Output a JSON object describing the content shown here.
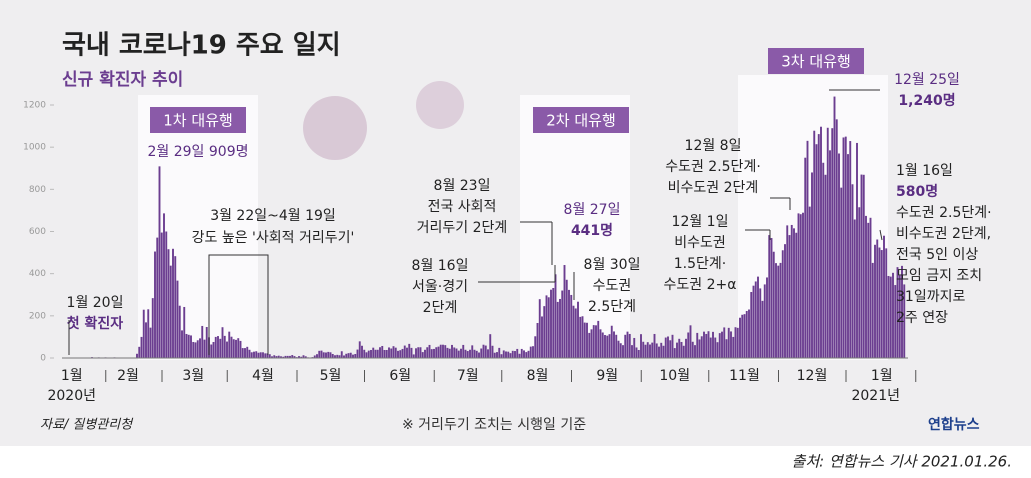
{
  "chart_data": {
    "type": "bar",
    "title": "국내 코로나19 주요 일지",
    "subtitle": "신규 확진자 추이",
    "color": "#6b3d90",
    "ylim": [
      0,
      1200
    ],
    "yticks": [
      0,
      200,
      400,
      600,
      800,
      1000,
      1200
    ],
    "year_start": "2020년",
    "year_end": "2021년",
    "waves": [
      "1차 대유행",
      "2차 대유행",
      "3차 대유행"
    ],
    "categories": [
      null,
      "1월",
      null,
      null,
      null,
      null,
      null,
      null,
      null,
      null,
      null,
      null,
      null,
      null,
      null,
      null,
      null,
      null,
      null,
      null,
      null,
      null,
      null,
      null,
      null,
      null,
      "2월",
      null,
      null,
      null,
      null,
      null,
      null,
      null,
      null,
      null,
      null,
      null,
      null,
      null,
      null,
      null,
      null,
      null,
      null,
      null,
      null,
      null,
      null,
      null,
      null,
      null,
      null,
      null,
      null,
      "3월",
      null,
      null,
      null,
      null,
      null,
      null,
      null,
      null,
      null,
      null,
      null,
      null,
      null,
      null,
      null,
      null,
      null,
      null,
      null,
      null,
      null,
      null,
      null,
      null,
      null,
      null,
      null,
      null,
      null,
      null,
      "4월",
      null,
      null,
      null,
      null,
      null,
      null,
      null,
      null,
      null,
      null,
      null,
      null,
      null,
      null,
      null,
      null,
      null,
      null,
      null,
      null,
      null,
      null,
      null,
      null,
      null,
      null,
      null,
      null,
      null,
      "5월",
      null,
      null,
      null,
      null,
      null,
      null,
      null,
      null,
      null,
      null,
      null,
      null,
      null,
      null,
      null,
      null,
      null,
      null,
      null,
      null,
      null,
      null,
      null,
      null,
      null,
      null,
      null,
      null,
      null,
      null,
      "6월",
      null,
      null,
      null,
      null,
      null,
      null,
      null,
      null,
      null,
      null,
      null,
      null,
      null,
      null,
      null,
      null,
      null,
      null,
      null,
      null,
      null,
      null,
      null,
      null,
      null,
      null,
      null,
      null,
      null,
      "7월",
      null,
      null,
      null,
      null,
      null,
      null,
      null,
      null,
      null,
      null,
      null,
      null,
      null,
      null,
      null,
      null,
      null,
      null,
      null,
      null,
      null,
      null,
      null,
      null,
      null,
      null,
      null,
      null,
      null,
      null,
      "8월",
      null,
      null,
      null,
      null,
      null,
      null,
      null,
      null,
      null,
      null,
      null,
      null,
      null,
      null,
      null,
      null,
      null,
      null,
      null,
      null,
      null,
      null,
      null,
      null,
      null,
      null,
      null,
      null,
      null,
      null,
      "9월",
      null,
      null,
      null,
      null,
      null,
      null,
      null,
      null,
      null,
      null,
      null,
      null,
      null,
      null,
      null,
      null,
      null,
      null,
      null,
      null,
      null,
      null,
      null,
      null,
      null,
      null,
      null,
      null,
      null,
      "10월",
      null,
      null,
      null,
      null,
      null,
      null,
      null,
      null,
      null,
      null,
      null,
      null,
      null,
      null,
      null,
      null,
      null,
      null,
      null,
      null,
      null,
      null,
      null,
      null,
      null,
      null,
      null,
      null,
      null,
      null,
      "11월",
      null,
      null,
      null,
      null,
      null,
      null,
      null,
      null,
      null,
      null,
      null,
      null,
      null,
      null,
      null,
      null,
      null,
      null,
      null,
      null,
      null,
      null,
      null,
      null,
      null,
      null,
      null,
      null,
      null,
      "12월",
      null,
      null,
      null,
      null,
      null,
      null,
      null,
      null,
      null,
      null,
      null,
      null,
      null,
      null,
      null,
      null,
      null,
      null,
      null,
      null,
      null,
      null,
      null,
      null,
      null,
      null,
      null,
      null,
      null,
      null,
      "1월",
      null,
      null,
      null,
      null,
      null,
      null,
      null,
      null,
      null,
      null
    ],
    "values": [
      1,
      0,
      0,
      0,
      1,
      0,
      2,
      0,
      0,
      0,
      4,
      1,
      1,
      3,
      0,
      0,
      3,
      2,
      1,
      0,
      3,
      0,
      0,
      0,
      0,
      0,
      0,
      1,
      1,
      1,
      20,
      53,
      100,
      229,
      169,
      231,
      144,
      284,
      505,
      571,
      909,
      595,
      686,
      600,
      516,
      438,
      518,
      483,
      367,
      248,
      131,
      242,
      114,
      110,
      107,
      76,
      74,
      84,
      93,
      152,
      87,
      147,
      98,
      64,
      76,
      100,
      104,
      91,
      146,
      105,
      78,
      125,
      101,
      89,
      86,
      94,
      81,
      47,
      47,
      53,
      39,
      27,
      30,
      32,
      25,
      27,
      27,
      22,
      22,
      18,
      8,
      13,
      9,
      11,
      8,
      6,
      10,
      10,
      10,
      14,
      9,
      4,
      9,
      6,
      13,
      8,
      3,
      2,
      4,
      12,
      18,
      34,
      35,
      27,
      26,
      29,
      27,
      19,
      13,
      15,
      13,
      32,
      12,
      20,
      23,
      25,
      16,
      19,
      40,
      79,
      58,
      39,
      27,
      35,
      38,
      49,
      39,
      39,
      51,
      57,
      38,
      38,
      50,
      45,
      56,
      49,
      34,
      37,
      43,
      59,
      49,
      67,
      48,
      17,
      46,
      51,
      51,
      28,
      39,
      51,
      62,
      42,
      43,
      51,
      54,
      63,
      63,
      61,
      48,
      44,
      62,
      50,
      45,
      35,
      44,
      62,
      39,
      33,
      39,
      60,
      39,
      34,
      26,
      45,
      63,
      59,
      41,
      113,
      58,
      25,
      28,
      48,
      18,
      36,
      31,
      30,
      23,
      34,
      33,
      43,
      20,
      43,
      36,
      28,
      34,
      54,
      56,
      103,
      166,
      279,
      197,
      246,
      297,
      288,
      324,
      332,
      397,
      266,
      280,
      320,
      441,
      371,
      323,
      299,
      248,
      235,
      267,
      195,
      198,
      168,
      167,
      119,
      136,
      156,
      155,
      176,
      136,
      121,
      109,
      106,
      113,
      153,
      126,
      110,
      82,
      70,
      61,
      110,
      125,
      114,
      61,
      95,
      50,
      38,
      113,
      77,
      63,
      75,
      64,
      73,
      114,
      69,
      54,
      72,
      58,
      97,
      102,
      84,
      110,
      47,
      73,
      91,
      76,
      58,
      91,
      121,
      155,
      77,
      61,
      119,
      88,
      103,
      125,
      114,
      127,
      97,
      124,
      97,
      75,
      118,
      125,
      145,
      89,
      143,
      126,
      100,
      146,
      143,
      191,
      205,
      208,
      223,
      230,
      313,
      343,
      363,
      386,
      330,
      271,
      349,
      382,
      583,
      569,
      504,
      450,
      438,
      451,
      511,
      540,
      629,
      583,
      631,
      615,
      594,
      686,
      682,
      689,
      950,
      1030,
      718,
      880,
      1078,
      1014,
      1062,
      1097,
      926,
      869,
      1092,
      985,
      1090,
      1240,
      1132,
      970,
      808,
      1046,
      1050,
      967,
      1029,
      824,
      657,
      1020,
      715,
      870,
      869,
      674,
      641,
      665,
      451,
      537,
      562,
      524,
      512,
      580,
      520,
      389,
      386,
      404,
      346,
      431,
      392,
      437,
      349
    ],
    "annotations": [
      {
        "lines": [
          "1월 20일",
          "첫 확진자"
        ]
      },
      {
        "lines": [
          "2월 29일 909명"
        ]
      },
      {
        "lines": [
          "3월 22일~4월 19일",
          "강도 높은 '사회적 거리두기'"
        ]
      },
      {
        "lines": [
          "8월 16일",
          "서울·경기",
          "2단계"
        ]
      },
      {
        "lines": [
          "8월 23일",
          "전국 사회적",
          "거리두기 2단계"
        ]
      },
      {
        "lines": [
          "8월 27일",
          "441명"
        ]
      },
      {
        "lines": [
          "8월 30일",
          "수도권",
          "2.5단계"
        ]
      },
      {
        "lines": [
          "12월 8일",
          "수도권 2.5단계·",
          "비수도권 2단계"
        ]
      },
      {
        "lines": [
          "12월 1일",
          "비수도권",
          "1.5단계·",
          "수도권 2+α"
        ]
      },
      {
        "lines": [
          "12월 25일",
          "1,240명"
        ]
      },
      {
        "lines": [
          "1월 16일",
          "580명",
          "수도권 2.5단계·",
          "비수도권 2단계,",
          "전국 5인 이상",
          "모임 금지 조치",
          "31일까지로",
          "2주 연장"
        ]
      }
    ],
    "source": "자료/ 질병관리청",
    "note": "※ 거리두기 조치는 시행일 기준",
    "logo": "연합뉴스",
    "credit": "출처: 연합뉴스 기사 2021.01.26."
  }
}
